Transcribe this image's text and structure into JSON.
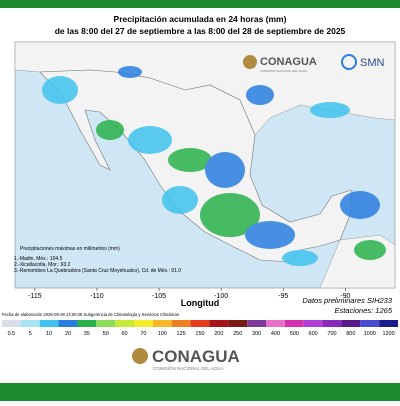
{
  "header": {
    "title": "Precipitación acumulada en 24 horas (mm)",
    "subtitle": "de las 8:00 del 27 de septiembre a las 8:00 del 28 de septiembre de 2025"
  },
  "logos": {
    "conagua": "CONAGUA",
    "conagua_sub": "COMISIÓN NACIONAL DEL AGUA",
    "smn": "SMN"
  },
  "legend": {
    "title": "Precipitaciones máximas en milímetros (mm)",
    "entries": [
      "1.-Madin, Méx.: 104.5",
      "2.-Xicatlacotla, Mor.: 93.2",
      "3.-Remombeo La Quebradora (Santa Cruz Meyehualco), Cd. de Méx.: 91.0"
    ]
  },
  "axis": {
    "label": "Longitud",
    "xlim": [
      -116.6,
      -86
    ],
    "xticks": [
      -115,
      -110,
      -105,
      -100,
      -95,
      -90
    ]
  },
  "notes": {
    "data": "Datos preliminares SIH233",
    "stations": "Estaciones: 1265",
    "date": "Fecha de elaboración 2025-09-28 14:00:28 Subgerencia de Climatología y Servicios Climáticos"
  },
  "colorbar": {
    "levels": [
      0.5,
      5,
      10,
      20,
      35,
      50,
      60,
      70,
      100,
      125,
      150,
      200,
      250,
      300,
      400,
      500,
      600,
      700,
      800,
      1000,
      1200
    ],
    "colors": [
      "#d9dfe8",
      "#a7e3f5",
      "#3fc3ee",
      "#2a7ee0",
      "#2ab24a",
      "#8fdc5a",
      "#c6ec3a",
      "#f4ee2a",
      "#f6b728",
      "#f07f1f",
      "#e43a1d",
      "#a8121a",
      "#7a1a14",
      "#7d3a9a",
      "#e86fc6",
      "#d52fb2",
      "#b040d8",
      "#8a2ab8",
      "#5a1a8a",
      "#4a4ad0",
      "#1a1a8a"
    ]
  },
  "footer": {
    "logo": "CONAGUA",
    "sub": "COMISIÓN NACIONAL DEL AGUA"
  }
}
